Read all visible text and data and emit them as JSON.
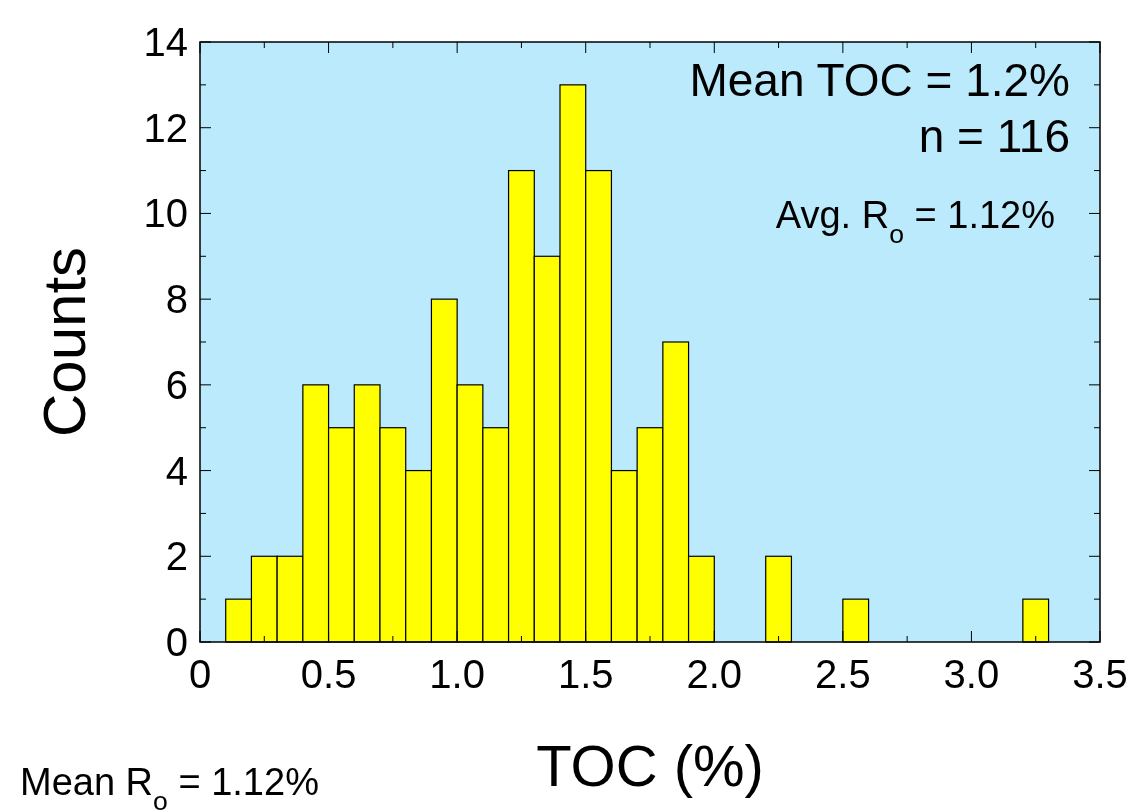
{
  "chart_data": {
    "type": "histogram",
    "xlabel": "TOC (%)",
    "ylabel": "Counts",
    "color": "#ffff00",
    "bins": [
      0.1,
      0.2,
      0.3,
      0.4,
      0.5,
      0.6,
      0.7,
      0.8,
      0.9,
      1.0,
      1.1,
      1.2,
      1.3,
      1.4,
      1.5,
      1.6,
      1.7,
      1.8,
      1.9,
      2.0,
      2.1,
      2.2,
      2.3,
      2.4,
      2.5,
      2.6,
      2.7,
      2.8,
      2.9,
      3.0,
      3.1,
      3.2,
      3.3
    ],
    "values": [
      1,
      2,
      2,
      6,
      5,
      6,
      5,
      4,
      8,
      6,
      5,
      11,
      9,
      13,
      11,
      4,
      5,
      7,
      2,
      0,
      0,
      2,
      0,
      0,
      1,
      0,
      0,
      0,
      0,
      0,
      0,
      1
    ],
    "xlim": [
      0,
      3.5
    ],
    "xticks": [
      0,
      {
        "value": 0.25,
        "label": null
      },
      {
        "value": 0.5,
        "label": "0.5"
      },
      {
        "value": 0.75,
        "label": null
      },
      {
        "value": 1,
        "label": "1.0"
      },
      {
        "value": 1.25,
        "label": null
      },
      {
        "value": 1.5,
        "label": "1.5"
      },
      {
        "value": 1.75,
        "label": null
      },
      {
        "value": 2,
        "label": "2.0"
      },
      {
        "value": 2.25,
        "label": null
      },
      {
        "value": 2.5,
        "label": "2.5"
      },
      {
        "value": 2.75,
        "label": null
      },
      {
        "value": 3,
        "label": "3.0"
      },
      {
        "value": 3.25,
        "label": null
      },
      {
        "value": 3.5,
        "label": "3.5"
      }
    ],
    "ylim": [
      0,
      14
    ],
    "yticks": [
      0,
      {
        "value": 1,
        "label": null
      },
      2,
      {
        "value": 3,
        "label": null
      },
      4,
      {
        "value": 5,
        "label": null
      },
      6,
      {
        "value": 7,
        "label": null
      },
      8,
      {
        "value": 9,
        "label": null
      },
      10,
      {
        "value": 11,
        "label": null
      },
      12,
      {
        "value": 13,
        "label": null
      },
      14
    ],
    "annotations": [
      "Mean TOC = 1.2%",
      "n = 116",
      "Avg. R$_{o}$ = 1.12%",
      "Mean R$_{o}$ = 1.12%"
    ]
  }
}
